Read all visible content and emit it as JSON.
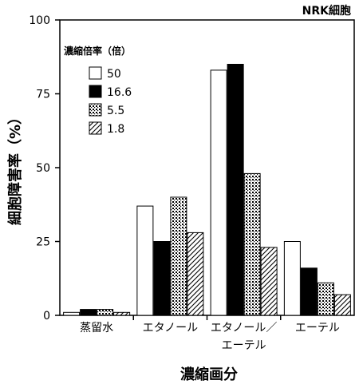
{
  "chart_data": {
    "type": "bar",
    "corner_label": "NRK細胞",
    "xlabel": "濃縮画分",
    "ylabel": "細胞障害率（%）",
    "ylim": [
      0,
      100
    ],
    "yticks": [
      0,
      25,
      50,
      75,
      100
    ],
    "categories": [
      [
        "蒸留水"
      ],
      [
        "エタノール"
      ],
      [
        "エタノール／",
        "エーテル"
      ],
      [
        "エーテル"
      ]
    ],
    "legend_title": "濃縮倍率（倍）",
    "legend_position": "upper-left",
    "series": [
      {
        "name": "50",
        "pattern": "white",
        "values": [
          1,
          37,
          83,
          25
        ]
      },
      {
        "name": "16.6",
        "pattern": "black",
        "values": [
          2,
          25,
          85,
          16
        ]
      },
      {
        "name": "5.5",
        "pattern": "dotted",
        "values": [
          2,
          40,
          48,
          11
        ]
      },
      {
        "name": "1.8",
        "pattern": "hatch",
        "values": [
          1,
          28,
          23,
          7
        ]
      }
    ]
  }
}
